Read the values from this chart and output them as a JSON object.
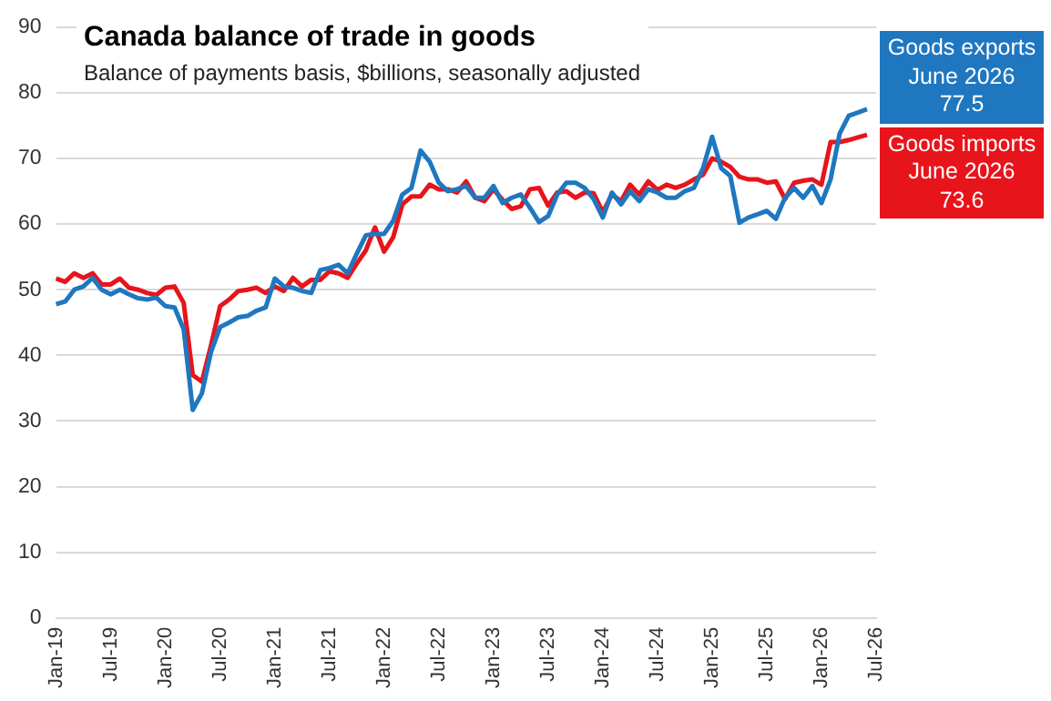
{
  "chart_data": {
    "type": "line",
    "title": "Canada balance of trade in goods",
    "subtitle": "Balance  of payments  basis, $billions, seasonally adjusted",
    "categories": [
      "Jan-19",
      null,
      null,
      null,
      null,
      null,
      "Jul-19",
      null,
      null,
      null,
      null,
      null,
      "Jan-20",
      null,
      null,
      null,
      null,
      null,
      "Jul-20",
      null,
      null,
      null,
      null,
      null,
      "Jan-21",
      null,
      null,
      null,
      null,
      null,
      "Jul-21",
      null,
      null,
      null,
      null,
      null,
      "Jan-22",
      null,
      null,
      null,
      null,
      null,
      "Jul-22",
      null,
      null,
      null,
      null,
      null,
      "Jan-23",
      null,
      null,
      null,
      null,
      null,
      "Jul-23",
      null,
      null,
      null,
      null,
      null,
      "Jan-24",
      null,
      null,
      null,
      null,
      null,
      "Jul-24",
      null,
      null,
      null,
      null,
      null,
      "Jan-25",
      null,
      null,
      null,
      null,
      null,
      "Jul-25",
      null,
      null,
      null,
      null,
      null,
      "Jan-26",
      null,
      null,
      null,
      null,
      null,
      "Jul-26"
    ],
    "series": [
      {
        "name": "Goods exports",
        "color": "#1f77c0",
        "values": [
          47.8,
          48.2,
          50,
          50.5,
          51.8,
          50,
          49.3,
          50,
          49.3,
          48.7,
          48.5,
          48.8,
          47.5,
          47.3,
          44,
          31.7,
          34.2,
          40.5,
          44.3,
          45,
          45.8,
          46,
          46.8,
          47.3,
          51.7,
          50.5,
          50.3,
          49.8,
          49.5,
          53,
          53.3,
          53.8,
          52.5,
          55.5,
          58.3,
          58.5,
          58.5,
          60.5,
          64.5,
          65.5,
          71.2,
          69.5,
          66.3,
          65,
          65.3,
          65.8,
          64,
          64,
          65.8,
          63.2,
          64,
          64.5,
          62.5,
          60.3,
          61.2,
          64.5,
          66.3,
          66.3,
          65.5,
          63.8,
          61,
          64.8,
          63,
          65,
          63.5,
          65.3,
          64.8,
          64,
          64,
          65,
          65.5,
          68.5,
          73.3,
          68.5,
          67.3,
          60.2,
          61,
          61.5,
          62,
          60.8,
          64,
          65.5,
          64,
          65.8,
          63.2,
          66.8,
          73.8,
          76.5,
          77,
          77.5,
          null
        ]
      },
      {
        "name": "Goods imports",
        "color": "#e8141b",
        "values": [
          51.7,
          51.2,
          52.5,
          51.8,
          52.5,
          50.8,
          50.8,
          51.7,
          50.3,
          50,
          49.5,
          49.2,
          50.3,
          50.5,
          48,
          37,
          36,
          41.5,
          47.5,
          48.5,
          49.8,
          50,
          50.3,
          49.5,
          50.5,
          49.8,
          51.8,
          50.5,
          51.5,
          51.5,
          52.8,
          52.5,
          51.8,
          54,
          56,
          59.5,
          55.8,
          58,
          63,
          64.2,
          64.2,
          66,
          65.3,
          65.3,
          64.8,
          66.5,
          64,
          63.5,
          65.3,
          63.7,
          62.3,
          62.7,
          65.3,
          65.5,
          62.8,
          64.8,
          65,
          64,
          64.8,
          64.7,
          61.8,
          64.5,
          63.5,
          66,
          64.5,
          66.5,
          65.2,
          66,
          65.5,
          66,
          66.8,
          67.5,
          70,
          69.5,
          68.7,
          67.2,
          66.8,
          66.8,
          66.3,
          66.5,
          63.8,
          66.3,
          66.6,
          66.8,
          66,
          72.5,
          72.5,
          72.8,
          73.2,
          73.6,
          null
        ]
      }
    ],
    "annotations": [
      "June 2026\n77.5",
      "June 2026\n73.6"
    ],
    "ylim": [
      0,
      90
    ],
    "yticks": [
      0,
      10,
      20,
      30,
      40,
      50,
      60,
      70,
      80,
      90
    ],
    "grid": "y",
    "legend": "right",
    "marker": "none",
    "line_style": "solid"
  }
}
